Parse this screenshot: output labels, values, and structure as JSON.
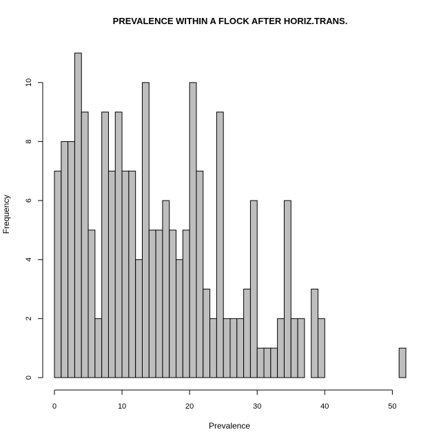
{
  "chart_data": {
    "type": "bar",
    "title": "PREVALENCE WITHIN A FLOCK AFTER HORIZ.TRANS.",
    "xlabel": "Prevalence",
    "ylabel": "Frequency",
    "xlim": [
      0,
      52
    ],
    "ylim": [
      0,
      11
    ],
    "x_ticks": [
      0,
      10,
      20,
      30,
      40,
      50
    ],
    "y_ticks": [
      0,
      2,
      4,
      6,
      8,
      10
    ],
    "bin_width": 1,
    "bin_start": 0,
    "values": [
      7,
      8,
      8,
      11,
      9,
      5,
      2,
      9,
      7,
      9,
      7,
      7,
      4,
      10,
      5,
      5,
      6,
      5,
      4,
      5,
      10,
      7,
      3,
      2,
      9,
      2,
      2,
      2,
      3,
      6,
      1,
      1,
      1,
      2,
      6,
      2,
      2,
      0,
      3,
      2,
      0,
      0,
      0,
      0,
      0,
      0,
      0,
      0,
      0,
      0,
      0,
      1
    ],
    "bar_color": "#bebebe",
    "edge_color": "#000000",
    "grid": false
  }
}
